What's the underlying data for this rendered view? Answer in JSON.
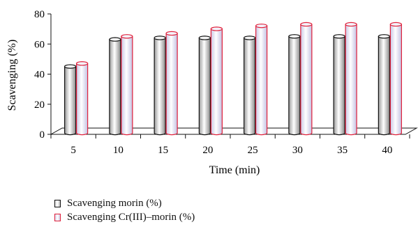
{
  "chart_data": {
    "type": "bar",
    "categories": [
      "5",
      "10",
      "15",
      "20",
      "25",
      "30",
      "35",
      "40"
    ],
    "series": [
      {
        "name": "Scavenging morin (%)",
        "values": [
          46,
          64,
          65,
          65,
          65,
          66,
          66,
          66
        ],
        "stroke": "#111111",
        "fill": "#e8e8e8"
      },
      {
        "name": "Scavenging Cr(III)–morin (%)",
        "values": [
          48,
          66,
          68,
          71,
          73,
          74,
          74,
          74
        ],
        "stroke": "#e0203a",
        "fill": "#e6e4f4"
      }
    ],
    "xlabel": "Time (min)",
    "ylabel": "Scavenging (%)",
    "ylim": [
      0,
      80
    ],
    "yticks": [
      0,
      20,
      40,
      60,
      80
    ],
    "grid": false,
    "legend_position": "bottom-left"
  }
}
